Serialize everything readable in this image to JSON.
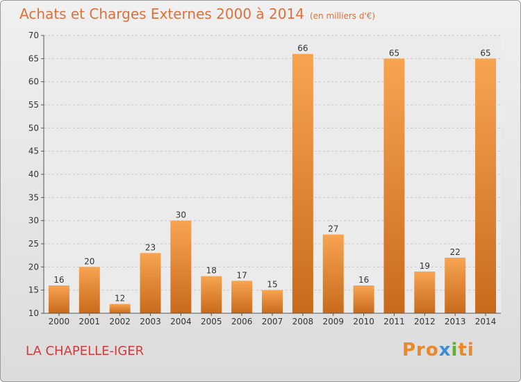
{
  "header": {
    "title": "Achats et Charges Externes 2000 à 2014",
    "unit": "(en milliers d'€)"
  },
  "footer": {
    "city": "LA CHAPELLE-IGER",
    "logo_parts": [
      "Pro",
      "x",
      "i",
      "ti"
    ]
  },
  "colors": {
    "bar_light": "#f7a451",
    "bar_dark": "#c86a1c",
    "title": "#e0703a",
    "city": "#d43a3a"
  },
  "chart_data": {
    "type": "bar",
    "categories": [
      "2000",
      "2001",
      "2002",
      "2003",
      "2004",
      "2005",
      "2006",
      "2007",
      "2008",
      "2009",
      "2010",
      "2011",
      "2012",
      "2013",
      "2014"
    ],
    "values": [
      16,
      20,
      12,
      23,
      30,
      18,
      17,
      15,
      66,
      27,
      16,
      65,
      19,
      22,
      65
    ],
    "ylim": [
      10,
      70
    ],
    "yticks": [
      10,
      15,
      20,
      25,
      30,
      35,
      40,
      45,
      50,
      55,
      60,
      65,
      70
    ],
    "grid": true,
    "data_labels": true
  }
}
